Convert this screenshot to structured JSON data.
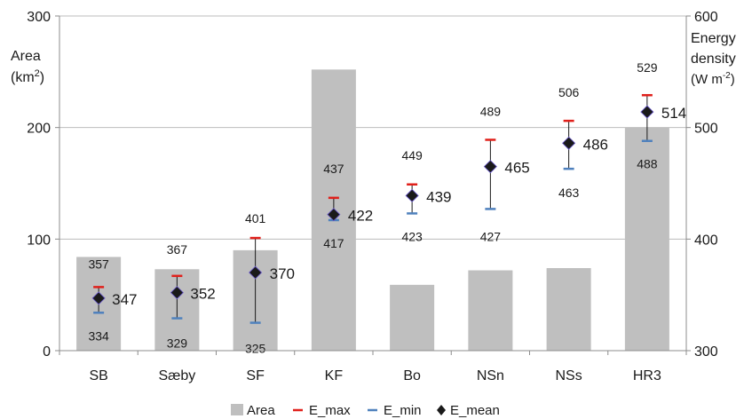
{
  "chart_data": {
    "type": "bar",
    "categories": [
      "SB",
      "Sæby",
      "SF",
      "KF",
      "Bo",
      "NSn",
      "NSs",
      "HR3"
    ],
    "left_axis": {
      "label_line1": "Area",
      "label_line2_base": "(km",
      "label_line2_sup": "2",
      "label_line2_end": ")",
      "ylim": [
        0,
        300
      ],
      "ticks": [
        0,
        100,
        200,
        300
      ]
    },
    "right_axis": {
      "label_line1": "Energy",
      "label_line2": "density",
      "label_line3_base": "(W m",
      "label_line3_sup": "-2",
      "label_line3_end": ")",
      "ylim": [
        300,
        600
      ],
      "ticks": [
        300,
        400,
        500,
        600
      ]
    },
    "grid": true,
    "legend_position": "bottom",
    "series": [
      {
        "name": "Area",
        "axis": "left",
        "kind": "bar",
        "color": "#bfbfbf",
        "values": [
          84,
          73,
          90,
          252,
          59,
          72,
          74,
          200
        ]
      },
      {
        "name": "E_max",
        "axis": "right",
        "kind": "marker-dash",
        "color": "#e0201b",
        "values": [
          357,
          367,
          401,
          437,
          449,
          489,
          506,
          529
        ],
        "labels": [
          "357",
          "367",
          "401",
          "437",
          "449",
          "489",
          "506",
          "529"
        ]
      },
      {
        "name": "E_min",
        "axis": "right",
        "kind": "marker-dash",
        "color": "#4f81bd",
        "values": [
          334,
          329,
          325,
          417,
          423,
          427,
          463,
          488
        ],
        "labels": [
          "334",
          "329",
          "325",
          "417",
          "423",
          "427",
          "463",
          "488"
        ]
      },
      {
        "name": "E_mean",
        "axis": "right",
        "kind": "marker-diamond",
        "color": "#1a1a1a",
        "values": [
          347,
          352,
          370,
          422,
          439,
          465,
          486,
          514
        ],
        "labels": [
          "347",
          "352",
          "370",
          "422",
          "439",
          "465",
          "486",
          "514"
        ]
      }
    ]
  }
}
